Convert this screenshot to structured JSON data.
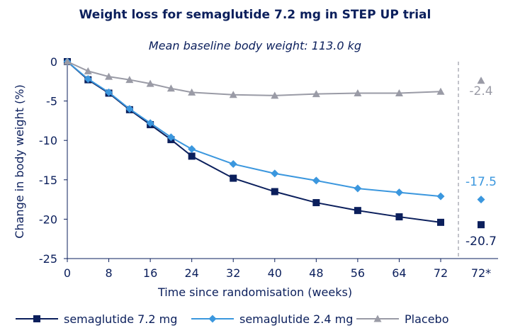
{
  "chart_data": {
    "type": "line",
    "title": "Weight loss for semaglutide 7.2 mg in STEP UP trial",
    "subtitle": "Mean baseline body weight: 113.0 kg",
    "xlabel": "Time since randomisation (weeks)",
    "ylabel": "Change in body weight (%)",
    "x": [
      0,
      4,
      8,
      12,
      16,
      20,
      24,
      32,
      40,
      48,
      56,
      64,
      72
    ],
    "x_ticks": [
      "0",
      "8",
      "16",
      "24",
      "32",
      "40",
      "48",
      "56",
      "64",
      "72"
    ],
    "x_extra_tick": "72*",
    "ylim": [
      -25,
      0
    ],
    "y_ticks": [
      "0",
      "-5",
      "-10",
      "-15",
      "-20",
      "-25"
    ],
    "series": [
      {
        "name": "semaglutide 7.2 mg",
        "color": "#0b1f5c",
        "marker": "square",
        "values": [
          0,
          -2.3,
          -4.0,
          -6.1,
          -8.0,
          -9.9,
          -12.0,
          -14.8,
          -16.5,
          -17.9,
          -18.9,
          -19.7,
          -20.4
        ],
        "end_value": -20.7,
        "end_label": "-20.7",
        "end_label_color": "#0b1f5c"
      },
      {
        "name": "semaglutide 2.4 mg",
        "color": "#3b97de",
        "marker": "diamond",
        "values": [
          0,
          -2.2,
          -3.9,
          -6.0,
          -7.8,
          -9.6,
          -11.1,
          -13.0,
          -14.2,
          -15.1,
          -16.1,
          -16.6,
          -17.1
        ],
        "end_value": -17.5,
        "end_label": "-17.5",
        "end_label_color": "#3b97de"
      },
      {
        "name": "Placebo",
        "color": "#9a9ba6",
        "marker": "triangle",
        "values": [
          0,
          -1.2,
          -1.9,
          -2.3,
          -2.8,
          -3.4,
          -3.9,
          -4.2,
          -4.3,
          -4.1,
          -4.0,
          -4.0,
          -3.8
        ],
        "end_value": -2.4,
        "end_label": "-2.4",
        "end_label_color": "#9a9ba6"
      }
    ]
  }
}
